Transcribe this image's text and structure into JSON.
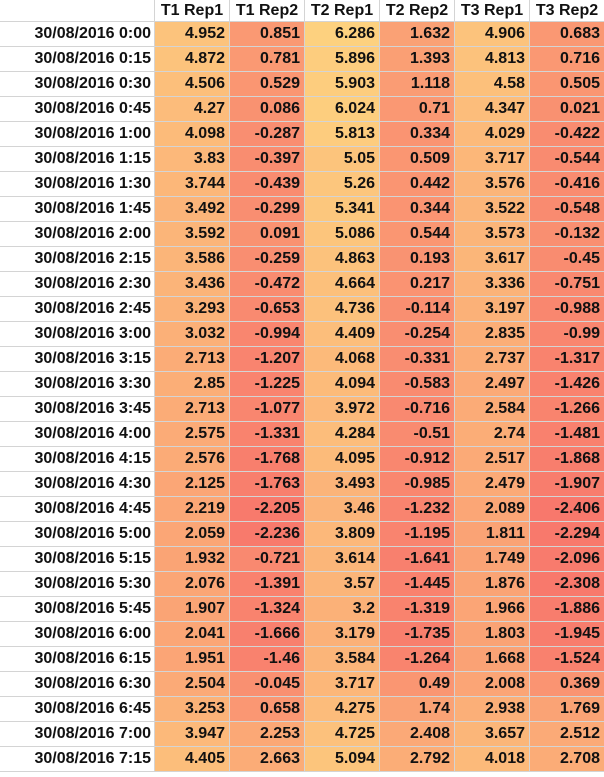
{
  "colors": {
    "high": "#fdd17f",
    "low": "#f8786c",
    "min_value": -2.406,
    "max_value": 6.286
  },
  "columns": [
    "",
    "T1 Rep1",
    "T1 Rep2",
    "T2 Rep1",
    "T2 Rep2",
    "T3 Rep1",
    "T3 Rep2"
  ],
  "rows": [
    {
      "time": "30/08/2016 0:00",
      "values": [
        "4.952",
        "0.851",
        "6.286",
        "1.632",
        "4.906",
        "0.683"
      ]
    },
    {
      "time": "30/08/2016 0:15",
      "values": [
        "4.872",
        "0.781",
        "5.896",
        "1.393",
        "4.813",
        "0.716"
      ]
    },
    {
      "time": "30/08/2016 0:30",
      "values": [
        "4.506",
        "0.529",
        "5.903",
        "1.118",
        "4.58",
        "0.505"
      ]
    },
    {
      "time": "30/08/2016 0:45",
      "values": [
        "4.27",
        "0.086",
        "6.024",
        "0.71",
        "4.347",
        "0.021"
      ]
    },
    {
      "time": "30/08/2016 1:00",
      "values": [
        "4.098",
        "-0.287",
        "5.813",
        "0.334",
        "4.029",
        "-0.422"
      ]
    },
    {
      "time": "30/08/2016 1:15",
      "values": [
        "3.83",
        "-0.397",
        "5.05",
        "0.509",
        "3.717",
        "-0.544"
      ]
    },
    {
      "time": "30/08/2016 1:30",
      "values": [
        "3.744",
        "-0.439",
        "5.26",
        "0.442",
        "3.576",
        "-0.416"
      ]
    },
    {
      "time": "30/08/2016 1:45",
      "values": [
        "3.492",
        "-0.299",
        "5.341",
        "0.344",
        "3.522",
        "-0.548"
      ]
    },
    {
      "time": "30/08/2016 2:00",
      "values": [
        "3.592",
        "0.091",
        "5.086",
        "0.544",
        "3.573",
        "-0.132"
      ]
    },
    {
      "time": "30/08/2016 2:15",
      "values": [
        "3.586",
        "-0.259",
        "4.863",
        "0.193",
        "3.617",
        "-0.45"
      ]
    },
    {
      "time": "30/08/2016 2:30",
      "values": [
        "3.436",
        "-0.472",
        "4.664",
        "0.217",
        "3.336",
        "-0.751"
      ]
    },
    {
      "time": "30/08/2016 2:45",
      "values": [
        "3.293",
        "-0.653",
        "4.736",
        "-0.114",
        "3.197",
        "-0.988"
      ]
    },
    {
      "time": "30/08/2016 3:00",
      "values": [
        "3.032",
        "-0.994",
        "4.409",
        "-0.254",
        "2.835",
        "-0.99"
      ]
    },
    {
      "time": "30/08/2016 3:15",
      "values": [
        "2.713",
        "-1.207",
        "4.068",
        "-0.331",
        "2.737",
        "-1.317"
      ]
    },
    {
      "time": "30/08/2016 3:30",
      "values": [
        "2.85",
        "-1.225",
        "4.094",
        "-0.583",
        "2.497",
        "-1.426"
      ]
    },
    {
      "time": "30/08/2016 3:45",
      "values": [
        "2.713",
        "-1.077",
        "3.972",
        "-0.716",
        "2.584",
        "-1.266"
      ]
    },
    {
      "time": "30/08/2016 4:00",
      "values": [
        "2.575",
        "-1.331",
        "4.284",
        "-0.51",
        "2.74",
        "-1.481"
      ]
    },
    {
      "time": "30/08/2016 4:15",
      "values": [
        "2.576",
        "-1.768",
        "4.095",
        "-0.912",
        "2.517",
        "-1.868"
      ]
    },
    {
      "time": "30/08/2016 4:30",
      "values": [
        "2.125",
        "-1.763",
        "3.493",
        "-0.985",
        "2.479",
        "-1.907"
      ]
    },
    {
      "time": "30/08/2016 4:45",
      "values": [
        "2.219",
        "-2.205",
        "3.46",
        "-1.232",
        "2.089",
        "-2.406"
      ]
    },
    {
      "time": "30/08/2016 5:00",
      "values": [
        "2.059",
        "-2.236",
        "3.809",
        "-1.195",
        "1.811",
        "-2.294"
      ]
    },
    {
      "time": "30/08/2016 5:15",
      "values": [
        "1.932",
        "-0.721",
        "3.614",
        "-1.641",
        "1.749",
        "-2.096"
      ]
    },
    {
      "time": "30/08/2016 5:30",
      "values": [
        "2.076",
        "-1.391",
        "3.57",
        "-1.445",
        "1.876",
        "-2.308"
      ]
    },
    {
      "time": "30/08/2016 5:45",
      "values": [
        "1.907",
        "-1.324",
        "3.2",
        "-1.319",
        "1.966",
        "-1.886"
      ]
    },
    {
      "time": "30/08/2016 6:00",
      "values": [
        "2.041",
        "-1.666",
        "3.179",
        "-1.735",
        "1.803",
        "-1.945"
      ]
    },
    {
      "time": "30/08/2016 6:15",
      "values": [
        "1.951",
        "-1.46",
        "3.584",
        "-1.264",
        "1.668",
        "-1.524"
      ]
    },
    {
      "time": "30/08/2016 6:30",
      "values": [
        "2.504",
        "-0.045",
        "3.717",
        "0.49",
        "2.008",
        "0.369"
      ]
    },
    {
      "time": "30/08/2016 6:45",
      "values": [
        "3.253",
        "0.658",
        "4.275",
        "1.74",
        "2.938",
        "1.769"
      ]
    },
    {
      "time": "30/08/2016 7:00",
      "values": [
        "3.947",
        "2.253",
        "4.725",
        "2.408",
        "3.657",
        "2.512"
      ]
    },
    {
      "time": "30/08/2016 7:15",
      "values": [
        "4.405",
        "2.663",
        "5.094",
        "2.792",
        "4.018",
        "2.708"
      ]
    }
  ]
}
